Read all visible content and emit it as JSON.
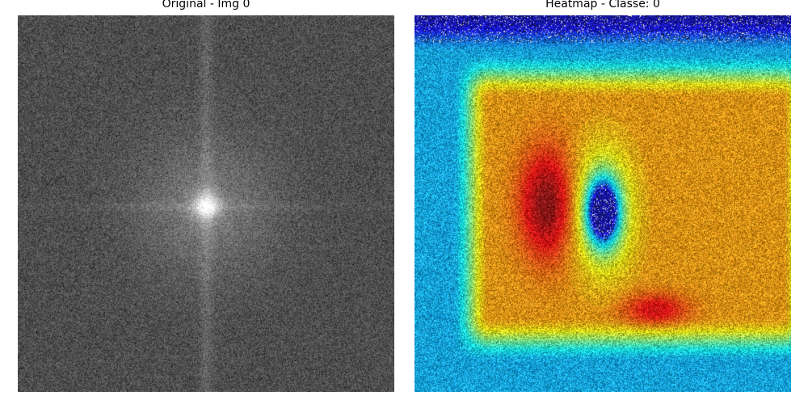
{
  "panels": {
    "original": {
      "title": "Original - Img 0",
      "image": "fft-spectrum-grayscale"
    },
    "heatmap": {
      "title": "Heatmap - Classe: 0",
      "image": "jet-heatmap-overlay",
      "colormap": "jet"
    }
  }
}
